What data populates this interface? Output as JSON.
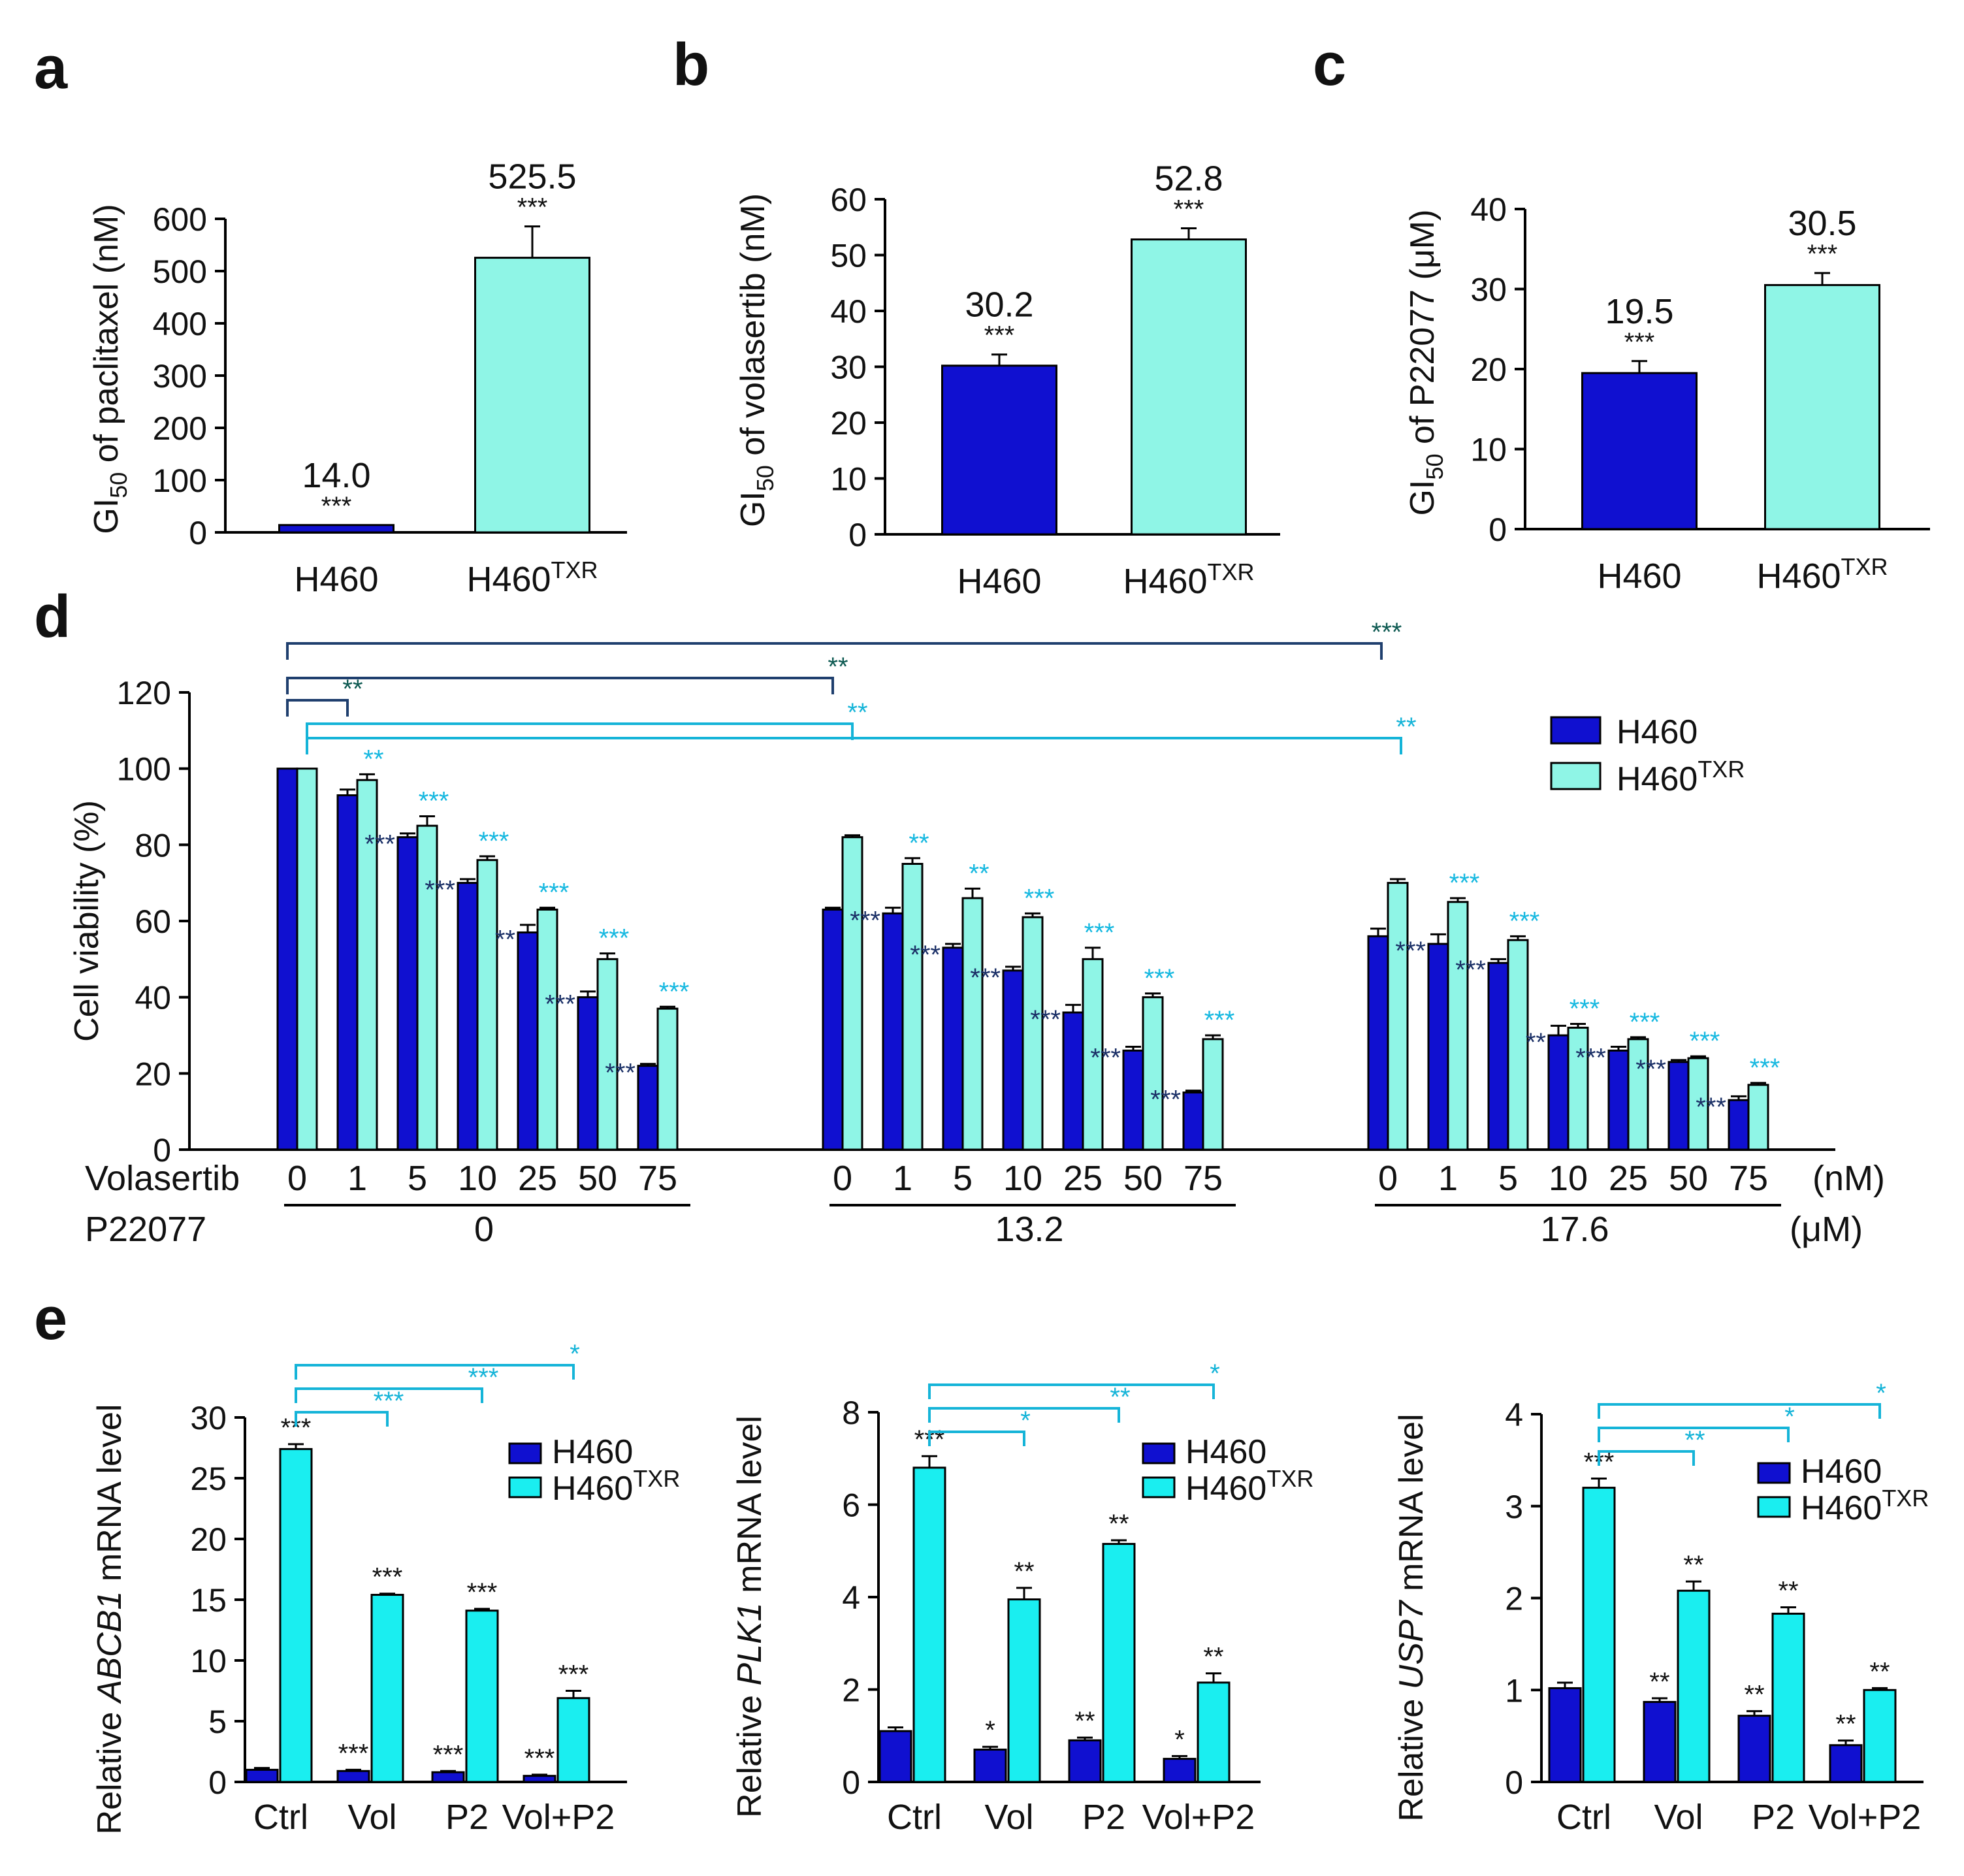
{
  "colors": {
    "h460": "#1010d0",
    "h460txr_ab": "#8ff5e6",
    "h460txr_de": "#1aeef0",
    "sig_dark": "#0e5a52",
    "bracket_dark": "#1f3f6e",
    "bracket_cyan": "#15b4d8",
    "star_light": "#15b8e0",
    "star_dark": "#1a2f66"
  },
  "panel_labels": {
    "a": "a",
    "b": "b",
    "c": "c",
    "d": "d",
    "e": "e"
  },
  "chart_data": [
    {
      "id": "a",
      "type": "bar",
      "ylabel_pre": "GI",
      "ylabel_sub": "50",
      "ylabel_post": " of paclitaxel (nM)",
      "ylim": [
        0,
        600
      ],
      "yticks": [
        0,
        100,
        200,
        300,
        400,
        500,
        600
      ],
      "categories": [
        {
          "main": "H460",
          "sup": ""
        },
        {
          "main": "H460",
          "sup": "TXR"
        }
      ],
      "values": [
        14.0,
        525.5
      ],
      "errors": [
        0,
        60
      ],
      "value_labels": [
        "14.0",
        "525.5"
      ],
      "sig": [
        "***",
        "***"
      ]
    },
    {
      "id": "b",
      "type": "bar",
      "ylabel_pre": "GI",
      "ylabel_sub": "50",
      "ylabel_post": " of volasertib (nM)",
      "ylim": [
        0,
        60
      ],
      "yticks": [
        0,
        10,
        20,
        30,
        40,
        50,
        60
      ],
      "categories": [
        {
          "main": "H460",
          "sup": ""
        },
        {
          "main": "H460",
          "sup": "TXR"
        }
      ],
      "values": [
        30.2,
        52.8
      ],
      "errors": [
        2.0,
        2.0
      ],
      "value_labels": [
        "30.2",
        "52.8"
      ],
      "sig": [
        "***",
        "***"
      ]
    },
    {
      "id": "c",
      "type": "bar",
      "ylabel_pre": "GI",
      "ylabel_sub": "50",
      "ylabel_post": " of P22077 (μM)",
      "ylim": [
        0,
        40
      ],
      "yticks": [
        0,
        10,
        20,
        30,
        40
      ],
      "categories": [
        {
          "main": "H460",
          "sup": ""
        },
        {
          "main": "H460",
          "sup": "TXR"
        }
      ],
      "values": [
        19.5,
        30.5
      ],
      "errors": [
        1.5,
        1.5
      ],
      "value_labels": [
        "19.5",
        "30.5"
      ],
      "sig": [
        "***",
        "***"
      ]
    },
    {
      "id": "d",
      "type": "bar",
      "ylabel": "Cell viability (%)",
      "ylim": [
        0,
        120
      ],
      "yticks": [
        0,
        20,
        40,
        60,
        80,
        100,
        120
      ],
      "legend": [
        {
          "main": "H460",
          "sup": ""
        },
        {
          "main": "H460",
          "sup": "TXR"
        }
      ],
      "volasertib_label": "Volasertib",
      "volasertib_unit": "(nM)",
      "p22077_label": "P22077",
      "p22077_unit": "(μM)",
      "groups": [
        {
          "p22077": "0",
          "dose_labels": [
            "0",
            "1",
            "5",
            "10",
            "25",
            "50",
            "75"
          ],
          "h460": [
            100,
            93,
            82,
            70,
            57,
            40,
            22
          ],
          "h460_err": [
            0,
            1.5,
            1,
            1,
            2,
            1.5,
            0.5
          ],
          "txr": [
            100,
            97,
            85,
            76,
            63,
            50,
            37
          ],
          "txr_err": [
            0,
            1.5,
            2.5,
            1,
            0.5,
            1.5,
            0.5
          ],
          "h460_sig": [
            "",
            "",
            "***",
            "***",
            "**",
            "***",
            "***"
          ],
          "txr_sig": [
            "",
            "**",
            "***",
            "***",
            "***",
            "***",
            "***"
          ]
        },
        {
          "p22077": "13.2",
          "dose_labels": [
            "0",
            "1",
            "5",
            "10",
            "25",
            "50",
            "75"
          ],
          "h460": [
            63,
            62,
            53,
            47,
            36,
            26,
            15
          ],
          "h460_err": [
            0.5,
            1.5,
            1,
            1,
            2,
            1,
            0.5
          ],
          "txr": [
            82,
            75,
            66,
            61,
            50,
            40,
            29
          ],
          "txr_err": [
            0.5,
            1.5,
            2.5,
            1,
            3,
            1,
            1
          ],
          "h460_sig": [
            "",
            "***",
            "***",
            "***",
            "***",
            "***",
            "***"
          ],
          "txr_sig": [
            "",
            "**",
            "**",
            "***",
            "***",
            "***",
            "***"
          ]
        },
        {
          "p22077": "17.6",
          "dose_labels": [
            "0",
            "1",
            "5",
            "10",
            "25",
            "50",
            "75"
          ],
          "h460": [
            56,
            54,
            49,
            30,
            26,
            23,
            13
          ],
          "h460_err": [
            2,
            2.5,
            1,
            2.5,
            1,
            0.5,
            1
          ],
          "txr": [
            70,
            65,
            55,
            32,
            29,
            24,
            17
          ],
          "txr_err": [
            1,
            1,
            1,
            1,
            0.5,
            0.5,
            0.5
          ],
          "h460_sig": [
            "",
            "***",
            "***",
            "**",
            "***",
            "***",
            "***"
          ],
          "txr_sig": [
            "",
            "***",
            "***",
            "***",
            "***",
            "***",
            "***"
          ]
        }
      ],
      "brackets": [
        {
          "label": "***",
          "color": "dark"
        },
        {
          "label": "**",
          "color": "dark"
        },
        {
          "label": "**",
          "color": "dark"
        },
        {
          "label": "**",
          "color": "cyan"
        },
        {
          "label": "**",
          "color": "cyan"
        }
      ]
    },
    {
      "id": "e1",
      "type": "bar",
      "ylabel_pre": "Relative ",
      "ylabel_gene": "ABCB1",
      "ylabel_post": " mRNA level",
      "ylim": [
        0,
        30
      ],
      "yticks": [
        0,
        5,
        10,
        15,
        20,
        25,
        30
      ],
      "categories": [
        "Ctrl",
        "Vol",
        "P2",
        "Vol+P2"
      ],
      "legend": [
        {
          "main": "H460",
          "sup": ""
        },
        {
          "main": "H460",
          "sup": "TXR"
        }
      ],
      "h460": [
        1.0,
        0.9,
        0.8,
        0.5
      ],
      "h460_err": [
        0.15,
        0.1,
        0.1,
        0.1
      ],
      "txr": [
        27.4,
        15.4,
        14.1,
        6.9
      ],
      "txr_err": [
        0.4,
        0.1,
        0.15,
        0.6
      ],
      "h460_sig": [
        "",
        "***",
        "***",
        "***"
      ],
      "txr_sig": [
        "***",
        "***",
        "***",
        "***"
      ],
      "brackets": [
        "***",
        "***",
        "*"
      ]
    },
    {
      "id": "e2",
      "type": "bar",
      "ylabel_pre": "Relative ",
      "ylabel_gene": "PLK1",
      "ylabel_post": " mRNA level",
      "ylim": [
        0,
        8
      ],
      "yticks": [
        0,
        2,
        4,
        6,
        8
      ],
      "categories": [
        "Ctrl",
        "Vol",
        "P2",
        "Vol+P2"
      ],
      "legend": [
        {
          "main": "H460",
          "sup": ""
        },
        {
          "main": "H460",
          "sup": "TXR"
        }
      ],
      "h460": [
        1.1,
        0.7,
        0.9,
        0.5
      ],
      "h460_err": [
        0.08,
        0.06,
        0.06,
        0.06
      ],
      "txr": [
        6.8,
        3.95,
        5.15,
        2.15
      ],
      "txr_err": [
        0.25,
        0.25,
        0.08,
        0.2
      ],
      "h460_sig": [
        "",
        "*",
        "**",
        "*"
      ],
      "txr_sig": [
        "***",
        "**",
        "**",
        "**"
      ],
      "brackets": [
        "*",
        "**",
        "*"
      ]
    },
    {
      "id": "e3",
      "type": "bar",
      "ylabel_pre": "Relative ",
      "ylabel_gene": "USP7",
      "ylabel_post": " mRNA level",
      "ylim": [
        0,
        4
      ],
      "yticks": [
        0,
        1,
        2,
        3,
        4
      ],
      "categories": [
        "Ctrl",
        "Vol",
        "P2",
        "Vol+P2"
      ],
      "legend": [
        {
          "main": "H460",
          "sup": ""
        },
        {
          "main": "H460",
          "sup": "TXR"
        }
      ],
      "h460": [
        1.02,
        0.87,
        0.72,
        0.4
      ],
      "h460_err": [
        0.06,
        0.04,
        0.05,
        0.05
      ],
      "txr": [
        3.2,
        2.08,
        1.83,
        1.0
      ],
      "txr_err": [
        0.1,
        0.1,
        0.07,
        0.02
      ],
      "h460_sig": [
        "",
        "**",
        "**",
        "**"
      ],
      "txr_sig": [
        "***",
        "**",
        "**",
        "**"
      ],
      "brackets": [
        "**",
        "*",
        "*"
      ]
    }
  ]
}
